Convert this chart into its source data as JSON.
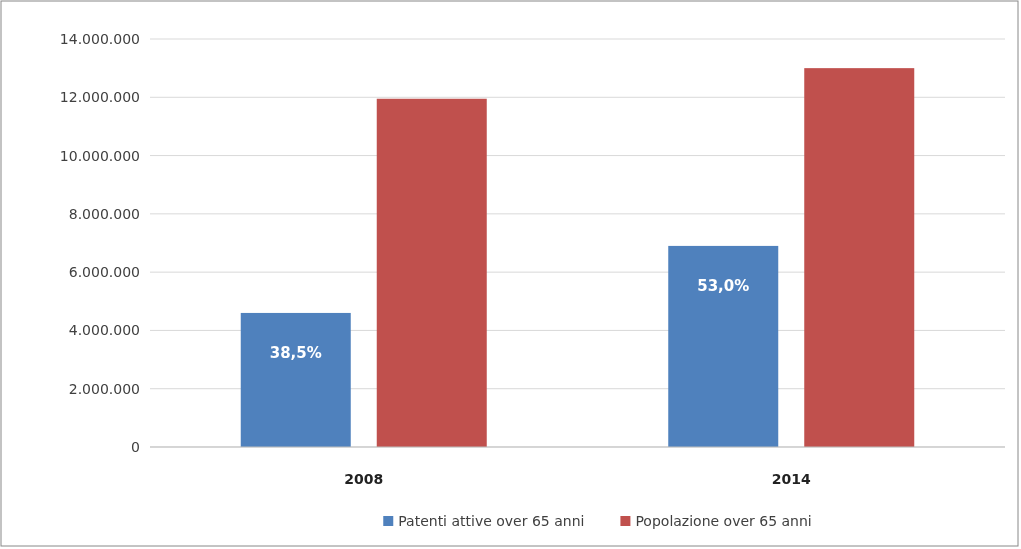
{
  "chart_data": {
    "type": "bar",
    "categories": [
      "2008",
      "2014"
    ],
    "series": [
      {
        "name": "Patenti attive over 65 anni",
        "color": "#4f81bd",
        "values": [
          4600000,
          6900000
        ]
      },
      {
        "name": "Popolazione over 65 anni",
        "color": "#c0504d",
        "values": [
          11950000,
          13000000
        ]
      }
    ],
    "ylim": [
      0,
      14000000
    ],
    "yticks": [
      {
        "value": 0,
        "label": "0"
      },
      {
        "value": 2000000,
        "label": "2.000.000"
      },
      {
        "value": 4000000,
        "label": "4.000.000"
      },
      {
        "value": 6000000,
        "label": "6.000.000"
      },
      {
        "value": 8000000,
        "label": "8.000.000"
      },
      {
        "value": 10000000,
        "label": "10.000.000"
      },
      {
        "value": 12000000,
        "label": "12.000.000"
      },
      {
        "value": 14000000,
        "label": "14.000.000"
      }
    ],
    "annotations": [
      "38,5%",
      "53,0%"
    ],
    "grid": "y",
    "legend": "bottom"
  }
}
